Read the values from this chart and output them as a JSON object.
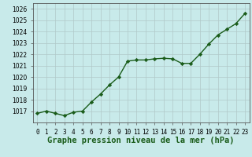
{
  "x": [
    0,
    1,
    2,
    3,
    4,
    5,
    6,
    7,
    8,
    9,
    10,
    11,
    12,
    13,
    14,
    15,
    16,
    17,
    18,
    19,
    20,
    21,
    22,
    23
  ],
  "y": [
    1016.8,
    1017.0,
    1016.8,
    1016.6,
    1016.9,
    1017.0,
    1017.8,
    1018.5,
    1019.3,
    1020.0,
    1021.4,
    1021.5,
    1021.5,
    1021.6,
    1021.65,
    1021.6,
    1021.2,
    1021.2,
    1022.0,
    1022.9,
    1023.7,
    1024.2,
    1024.7,
    1025.6
  ],
  "line_color": "#1a5c1a",
  "marker": "D",
  "marker_size": 2.2,
  "bg_color": "#c8eaea",
  "grid_color": "#b0c8c8",
  "xlabel": "Graphe pression niveau de la mer (hPa)",
  "xlabel_color": "#1a5c1a",
  "xlabel_fontsize": 7.5,
  "ylim": [
    1016.0,
    1026.5
  ],
  "xlim": [
    -0.5,
    23.5
  ],
  "yticks": [
    1017,
    1018,
    1019,
    1020,
    1021,
    1022,
    1023,
    1024,
    1025,
    1026
  ],
  "xtick_labels": [
    "0",
    "1",
    "2",
    "3",
    "4",
    "5",
    "6",
    "7",
    "8",
    "9",
    "10",
    "11",
    "12",
    "13",
    "14",
    "15",
    "16",
    "17",
    "18",
    "19",
    "20",
    "21",
    "22",
    "23"
  ],
  "tick_fontsize": 5.5,
  "line_width": 1.0
}
